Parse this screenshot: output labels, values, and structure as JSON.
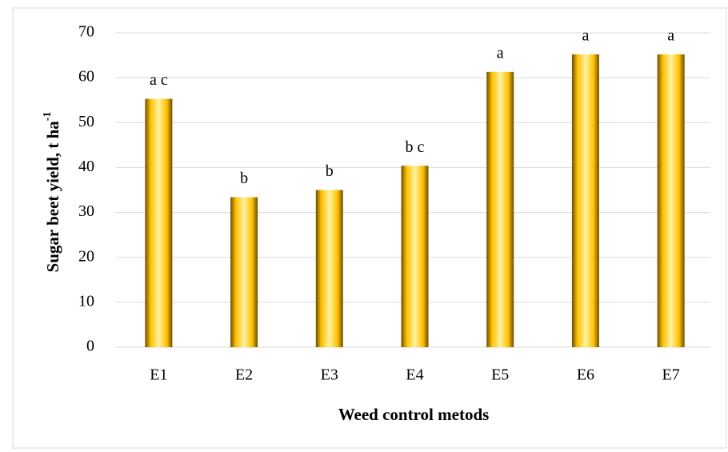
{
  "chart_data": {
    "type": "bar",
    "categories": [
      "E1",
      "E2",
      "E3",
      "E4",
      "E5",
      "E6",
      "E7"
    ],
    "values": [
      55.3,
      33.4,
      35.0,
      40.4,
      61.3,
      65.2,
      65.2
    ],
    "annotations": [
      "a c",
      "b",
      "b",
      "b c",
      "a",
      "a",
      "a"
    ],
    "color": "#ffc000",
    "xlabel": "Weed control metods",
    "ylabel": "Sugar beet yield, t ha",
    "ylabel_superscript": "-1",
    "ylim": [
      0,
      70
    ],
    "yticks": [
      0,
      10,
      20,
      30,
      40,
      50,
      60,
      70
    ],
    "grid": true
  }
}
